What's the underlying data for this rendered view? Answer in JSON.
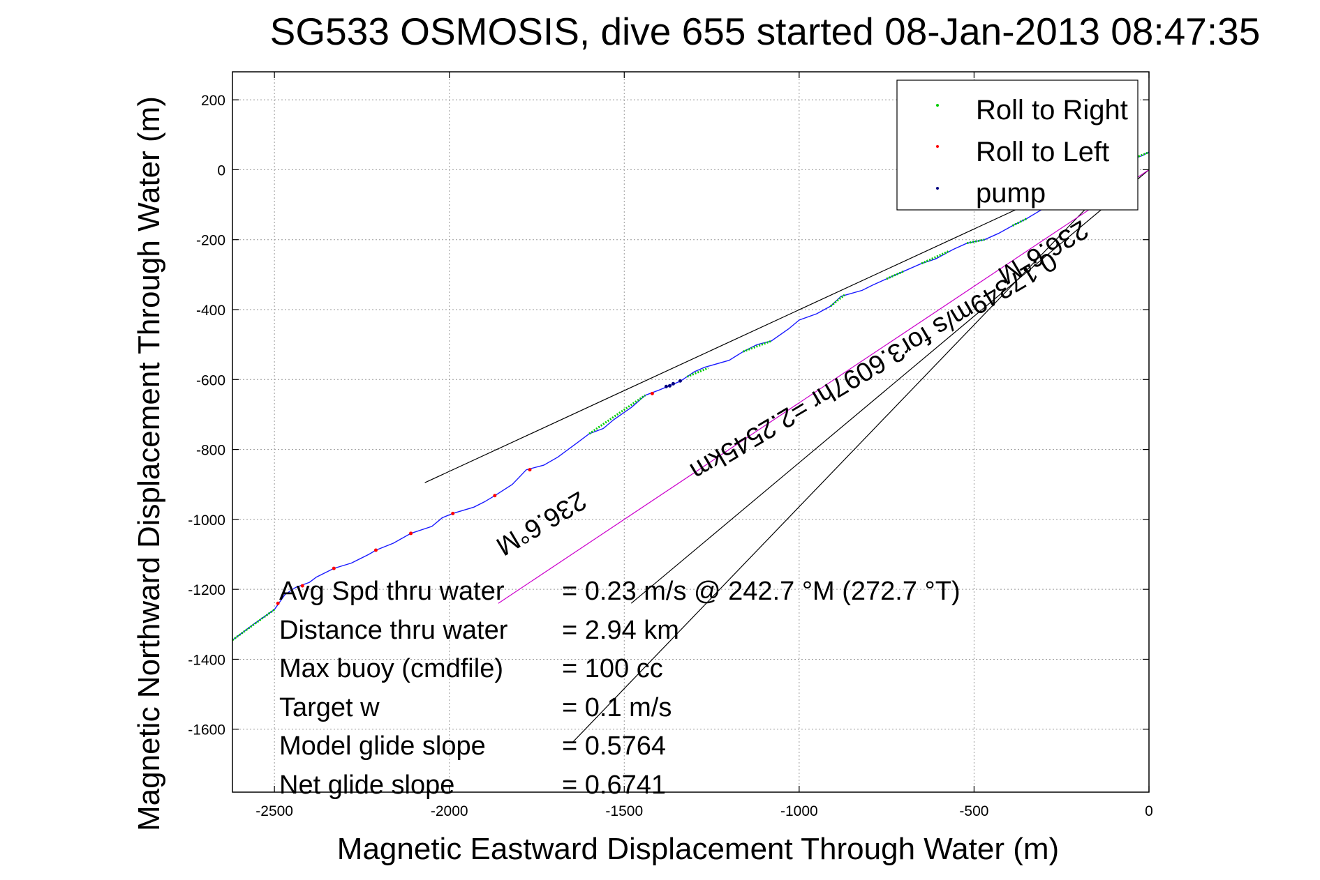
{
  "chart_data": {
    "type": "scatter",
    "title": "SG533 OSMOSIS, dive 655 started 08-Jan-2013 08:47:35",
    "xlabel": "Magnetic Eastward Displacement Through Water (m)",
    "ylabel": "Magnetic Northward Displacement Through Water (m)",
    "xlim": [
      -2620,
      0
    ],
    "ylim": [
      -1780,
      280
    ],
    "xticks": [
      -2500,
      -2000,
      -1500,
      -1000,
      -500,
      0
    ],
    "yticks": [
      200,
      0,
      -200,
      -400,
      -600,
      -800,
      -1000,
      -1200,
      -1400,
      -1600
    ],
    "grid": true,
    "legend_position": "top-right",
    "legend": [
      {
        "label": "Roll to Right",
        "color": "#00cc00"
      },
      {
        "label": "Roll to Left",
        "color": "#ff0000"
      },
      {
        "label": "pump",
        "color": "#000080"
      }
    ],
    "track": {
      "color": "#1a1aff",
      "points": [
        [
          -2620,
          -1345
        ],
        [
          -2560,
          -1300
        ],
        [
          -2500,
          -1258
        ],
        [
          -2470,
          -1215
        ],
        [
          -2440,
          -1195
        ],
        [
          -2400,
          -1180
        ],
        [
          -2380,
          -1165
        ],
        [
          -2330,
          -1140
        ],
        [
          -2280,
          -1125
        ],
        [
          -2230,
          -1100
        ],
        [
          -2210,
          -1088
        ],
        [
          -2160,
          -1068
        ],
        [
          -2110,
          -1040
        ],
        [
          -2050,
          -1020
        ],
        [
          -2020,
          -995
        ],
        [
          -1990,
          -983
        ],
        [
          -1930,
          -965
        ],
        [
          -1900,
          -950
        ],
        [
          -1870,
          -932
        ],
        [
          -1820,
          -900
        ],
        [
          -1780,
          -858
        ],
        [
          -1730,
          -845
        ],
        [
          -1690,
          -822
        ],
        [
          -1640,
          -785
        ],
        [
          -1600,
          -755
        ],
        [
          -1560,
          -740
        ],
        [
          -1530,
          -715
        ],
        [
          -1480,
          -680
        ],
        [
          -1440,
          -645
        ],
        [
          -1400,
          -630
        ],
        [
          -1340,
          -605
        ],
        [
          -1300,
          -578
        ],
        [
          -1270,
          -565
        ],
        [
          -1200,
          -545
        ],
        [
          -1160,
          -520
        ],
        [
          -1120,
          -500
        ],
        [
          -1080,
          -490
        ],
        [
          -1030,
          -455
        ],
        [
          -1000,
          -430
        ],
        [
          -950,
          -412
        ],
        [
          -910,
          -390
        ],
        [
          -880,
          -362
        ],
        [
          -820,
          -345
        ],
        [
          -790,
          -330
        ],
        [
          -750,
          -312
        ],
        [
          -700,
          -290
        ],
        [
          -650,
          -268
        ],
        [
          -610,
          -255
        ],
        [
          -560,
          -228
        ],
        [
          -520,
          -210
        ],
        [
          -470,
          -200
        ],
        [
          -430,
          -182
        ],
        [
          -390,
          -160
        ],
        [
          -350,
          -140
        ],
        [
          -300,
          -110
        ],
        [
          -250,
          -75
        ],
        [
          -200,
          -40
        ],
        [
          -150,
          -5
        ],
        [
          -80,
          20
        ],
        [
          -20,
          40
        ],
        [
          0,
          50
        ]
      ]
    },
    "roll_right_segments": [
      [
        [
          -2620,
          -1345
        ],
        [
          -2500,
          -1258
        ]
      ],
      [
        [
          -1600,
          -755
        ],
        [
          -1440,
          -645
        ]
      ],
      [
        [
          -1320,
          -592
        ],
        [
          -1260,
          -567
        ]
      ],
      [
        [
          -1160,
          -520
        ],
        [
          -1080,
          -490
        ]
      ],
      [
        [
          -910,
          -390
        ],
        [
          -870,
          -358
        ]
      ],
      [
        [
          -750,
          -312
        ],
        [
          -700,
          -290
        ]
      ],
      [
        [
          -650,
          -268
        ],
        [
          -570,
          -232
        ]
      ],
      [
        [
          -520,
          -210
        ],
        [
          -470,
          -200
        ]
      ],
      [
        [
          -390,
          -160
        ],
        [
          -350,
          -140
        ]
      ],
      [
        [
          -30,
          38
        ],
        [
          0,
          50
        ]
      ]
    ],
    "roll_left_points": [
      [
        -2490,
        -1240
      ],
      [
        -2420,
        -1190
      ],
      [
        -2330,
        -1140
      ],
      [
        -2210,
        -1088
      ],
      [
        -2110,
        -1040
      ],
      [
        -1990,
        -983
      ],
      [
        -1870,
        -932
      ],
      [
        -1770,
        -858
      ],
      [
        -1420,
        -640
      ]
    ],
    "pump_points": [
      [
        -1380,
        -620
      ],
      [
        -1370,
        -618
      ],
      [
        -1360,
        -612
      ],
      [
        -1340,
        -604
      ]
    ],
    "lines": [
      {
        "color": "#000000",
        "points": [
          [
            -2070,
            -895
          ],
          [
            -220,
            -40
          ]
        ]
      },
      {
        "color": "#000000",
        "points": [
          [
            -1650,
            -1640
          ],
          [
            -160,
            -90
          ]
        ]
      },
      {
        "color": "#000000",
        "points": [
          [
            -1480,
            -1240
          ],
          [
            0,
            0
          ]
        ]
      },
      {
        "color": "#cc00cc",
        "points": [
          [
            -1860,
            -1240
          ],
          [
            0,
            0
          ]
        ]
      }
    ],
    "annotations": [
      {
        "text": "236.6°M",
        "x": -1750,
        "y": -990,
        "angle": 149.3
      },
      {
        "text": "0.17349m/s for3.6097hr =2.2545km",
        "x": -800,
        "y": -540,
        "angle": 149.3
      },
      {
        "text": "236.6°M",
        "x": -315,
        "y": -215,
        "angle": 149.3
      }
    ],
    "stats": {
      "rows": [
        {
          "label": "Avg Spd thru water",
          "value": "=  0.23 m/s @ 242.7 °M (272.7 °T)"
        },
        {
          "label": "Distance thru water",
          "value": "=  2.94 km"
        },
        {
          "label": "Max buoy (cmdfile)",
          "value": "= 100 cc"
        },
        {
          "label": "Target w",
          "value": "= 0.1 m/s"
        },
        {
          "label": "Model glide slope",
          "value": "= 0.5764"
        },
        {
          "label": "Net glide slope",
          "value": "= 0.6741"
        }
      ]
    }
  }
}
